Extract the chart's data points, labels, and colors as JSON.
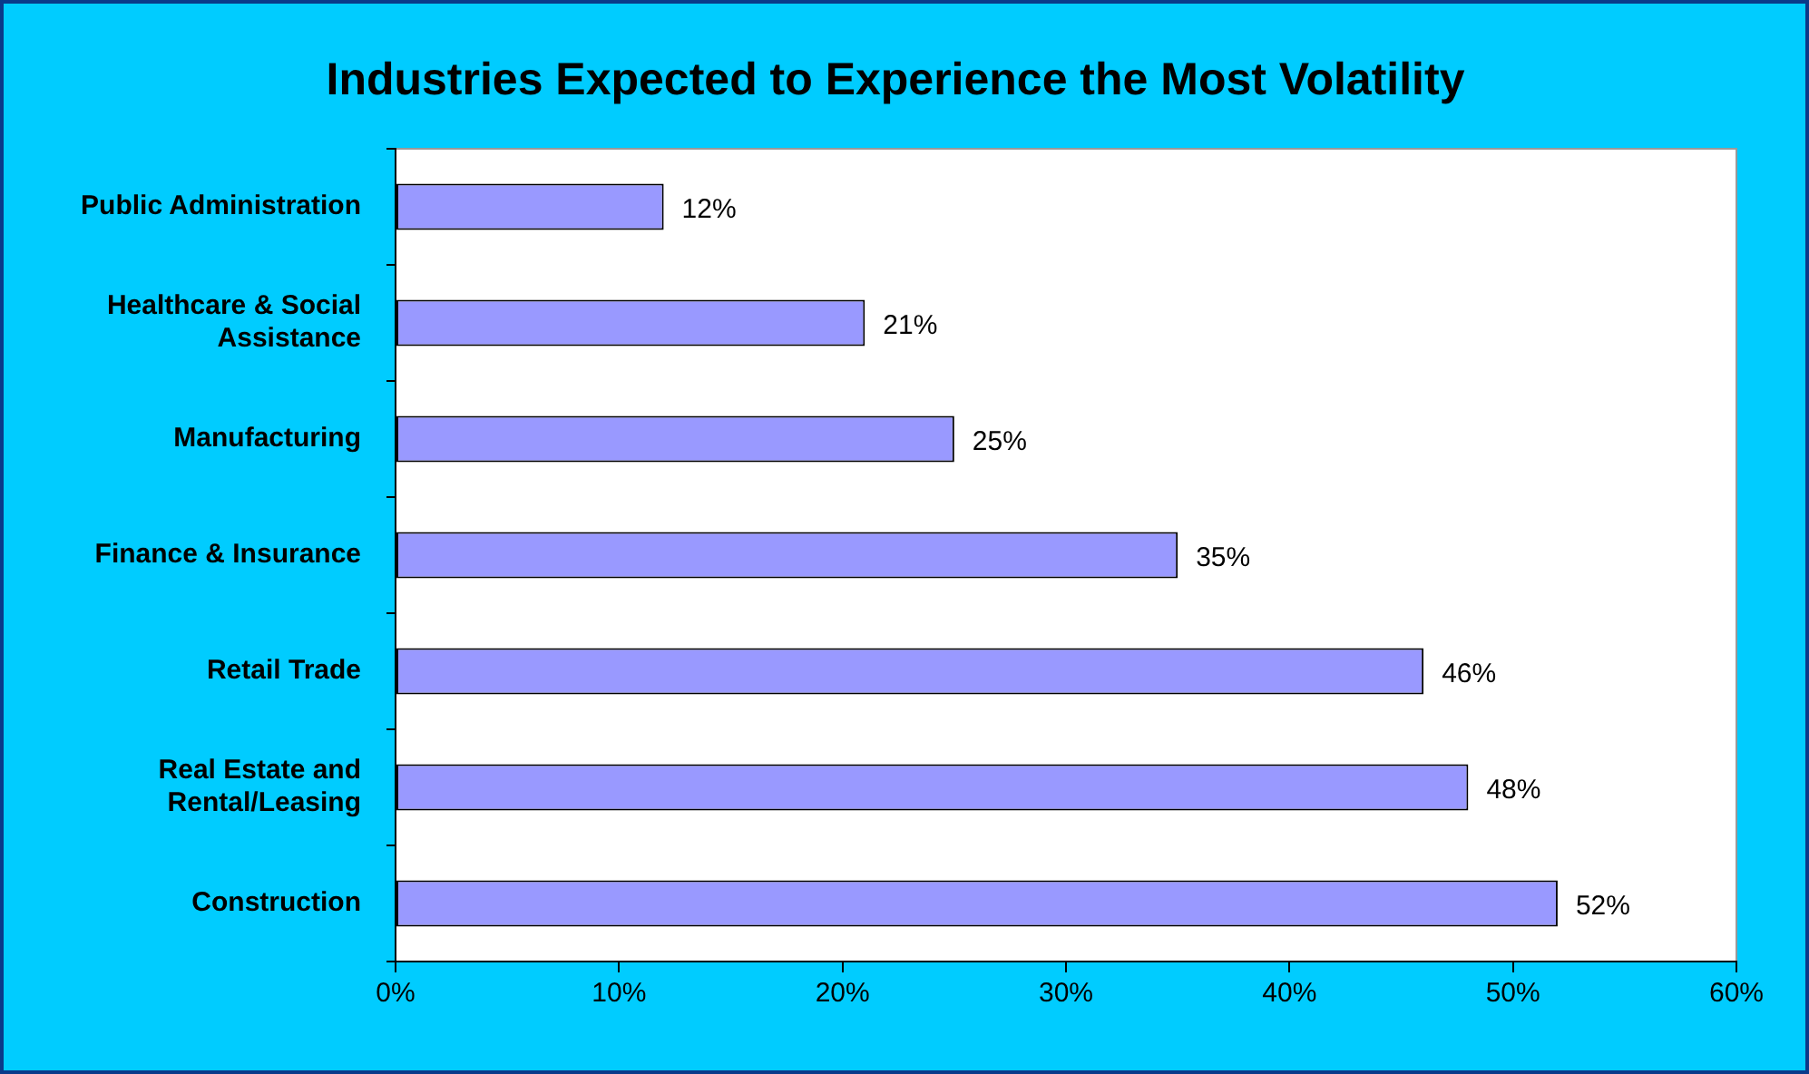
{
  "chart_data": {
    "type": "bar",
    "orientation": "horizontal",
    "title": "Industries Expected to Experience the Most Volatility",
    "categories": [
      "Public Administration",
      "Healthcare & Social Assistance",
      "Manufacturing",
      "Finance & Insurance",
      "Retail Trade",
      "Real Estate and Rental/Leasing",
      "Construction"
    ],
    "values": [
      12,
      21,
      25,
      35,
      46,
      48,
      52
    ],
    "value_labels": [
      "12%",
      "21%",
      "25%",
      "35%",
      "46%",
      "48%",
      "52%"
    ],
    "color": "#9999ff",
    "xlim": [
      0,
      60
    ],
    "xticks": [
      {
        "value": 0,
        "label": "0%"
      },
      {
        "value": 10,
        "label": "10%"
      },
      {
        "value": 20,
        "label": "20%"
      },
      {
        "value": 30,
        "label": "30%"
      },
      {
        "value": 40,
        "label": "40%"
      },
      {
        "value": 50,
        "label": "50%"
      },
      {
        "value": 60,
        "label": "60%"
      }
    ],
    "grid": false,
    "legend": false
  }
}
